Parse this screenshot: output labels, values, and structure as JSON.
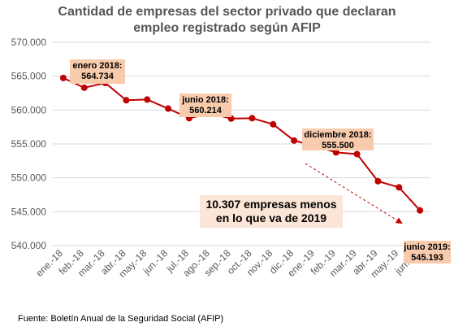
{
  "chart_data": {
    "type": "line",
    "title_lines": [
      "Cantidad de empresas del sector privado que declaran",
      "empleo registrado según AFIP"
    ],
    "categories": [
      "ene.-18",
      "feb.-18",
      "mar.-18",
      "abr.-18",
      "may.-18",
      "jun.-18",
      "jul.-18",
      "ago.-18",
      "sep.-18",
      "oct.-18",
      "nov.-18",
      "dic.-18",
      "ene.-19",
      "feb.-19",
      "mar.-19",
      "abr.-19",
      "may.-19",
      "jun.-19"
    ],
    "values": [
      564734,
      563300,
      564000,
      561450,
      561550,
      560214,
      558800,
      559500,
      558750,
      558800,
      557900,
      555500,
      554700,
      553750,
      553500,
      549500,
      548600,
      545193
    ],
    "y_ticks": [
      "570.000",
      "565.000",
      "560.000",
      "555.000",
      "550.000",
      "545.000",
      "540.000"
    ],
    "ylim": [
      540000,
      570000
    ],
    "line_color": "#c00000",
    "label_box_color": "#f8cbad",
    "annotations": [
      {
        "index": 0,
        "lines": [
          "enero 2018:",
          "564.734"
        ]
      },
      {
        "index": 5,
        "lines": [
          "junio 2018:",
          "560.214"
        ]
      },
      {
        "index": 11,
        "lines": [
          "diciembre 2018:",
          "555.500"
        ]
      },
      {
        "index": 17,
        "lines": [
          "junio 2019:",
          "545.193"
        ]
      }
    ],
    "note_lines": [
      "10.307 empresas menos",
      "en lo que va de 2019"
    ],
    "source": "Fuente: Boletín Anual de la Seguridad Social (AFIP)"
  }
}
